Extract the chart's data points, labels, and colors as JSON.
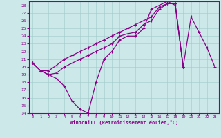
{
  "xlabel": "Windchill (Refroidissement éolien,°C)",
  "xlim": [
    -0.5,
    23.5
  ],
  "ylim": [
    14,
    28.5
  ],
  "yticks": [
    14,
    15,
    16,
    17,
    18,
    19,
    20,
    21,
    22,
    23,
    24,
    25,
    26,
    27,
    28
  ],
  "xticks": [
    0,
    1,
    2,
    3,
    4,
    5,
    6,
    7,
    8,
    9,
    10,
    11,
    12,
    13,
    14,
    15,
    16,
    17,
    18,
    19,
    20,
    21,
    22,
    23
  ],
  "background_color": "#cce8e8",
  "line_color": "#880088",
  "line1_x": [
    0,
    1,
    2,
    3,
    4,
    5,
    6,
    7,
    8,
    9,
    10,
    11,
    12,
    13,
    14,
    15,
    16,
    17,
    18,
    19,
    20,
    21,
    22,
    23
  ],
  "line1_y": [
    20.5,
    19.5,
    19.0,
    18.5,
    17.5,
    15.5,
    14.5,
    14.0,
    18.0,
    21.0,
    22.0,
    23.5,
    24.0,
    24.0,
    25.0,
    27.5,
    28.0,
    28.5,
    28.0,
    20.0,
    26.5,
    24.5,
    22.5,
    20.0
  ],
  "line2_x": [
    0,
    1,
    2,
    3,
    4,
    5,
    6,
    7,
    8,
    9,
    10,
    11,
    12,
    13,
    14,
    15,
    16,
    17,
    18,
    19
  ],
  "line2_y": [
    20.5,
    19.5,
    19.0,
    19.2,
    20.0,
    20.5,
    21.0,
    21.5,
    22.0,
    22.5,
    23.0,
    24.0,
    24.3,
    24.5,
    25.5,
    26.0,
    27.5,
    28.2,
    28.2,
    20.0
  ],
  "line3_x": [
    0,
    1,
    2,
    3,
    4,
    5,
    6,
    7,
    8,
    9,
    10,
    11,
    12,
    13,
    14,
    15,
    16,
    17,
    18,
    19
  ],
  "line3_y": [
    20.5,
    19.5,
    19.5,
    20.2,
    21.0,
    21.5,
    22.0,
    22.5,
    23.0,
    23.5,
    24.0,
    24.5,
    25.0,
    25.5,
    26.0,
    26.5,
    27.8,
    28.2,
    28.2,
    20.0
  ]
}
